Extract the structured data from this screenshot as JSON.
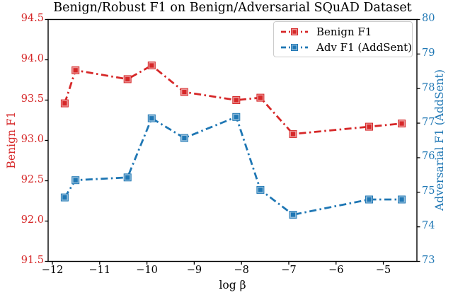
{
  "chart_data": {
    "type": "line",
    "title": "Benign/Robust F1 on Benign/Adversarial SQuAD Dataset",
    "xlabel": "log β",
    "ylabel_left": "Benign F1",
    "ylabel_right": "Adversarial F1 (AddSent)",
    "x": [
      -11.74,
      -11.51,
      -10.41,
      -9.9,
      -9.21,
      -8.11,
      -7.6,
      -6.91,
      -5.3,
      -4.61
    ],
    "series": [
      {
        "name": "Benign F1",
        "axis": "left",
        "color": "#d62728",
        "line_style": "dash-dot",
        "marker": "square",
        "values": [
          93.46,
          93.87,
          93.76,
          93.93,
          93.6,
          93.5,
          93.53,
          93.08,
          93.17,
          93.21
        ]
      },
      {
        "name": "Adv F1 (AddSent)",
        "axis": "right",
        "color": "#1f77b4",
        "line_style": "dash-dot",
        "marker": "square",
        "values": [
          74.85,
          75.35,
          75.43,
          77.14,
          76.57,
          77.18,
          75.07,
          74.35,
          74.79,
          74.79
        ]
      }
    ],
    "xlim": [
      -12.09,
      -4.29
    ],
    "ylim_left": [
      91.5,
      94.5
    ],
    "ylim_right": [
      73,
      80
    ],
    "x_ticks": [
      -12,
      -11,
      -10,
      -9,
      -8,
      -7,
      -6,
      -5
    ],
    "y_ticks_left": [
      94.5,
      94.0,
      93.5,
      93.0,
      92.5,
      92.0,
      91.5
    ],
    "y_ticks_right": [
      80,
      79,
      78,
      77,
      76,
      75,
      74,
      73
    ],
    "grid": false,
    "legend_position": "upper right",
    "colors": {
      "left_axis_text": "#d62728",
      "right_axis_text": "#1f77b4",
      "spine": "#000000",
      "legend_border": "#cccccc",
      "background": "#ffffff"
    }
  }
}
